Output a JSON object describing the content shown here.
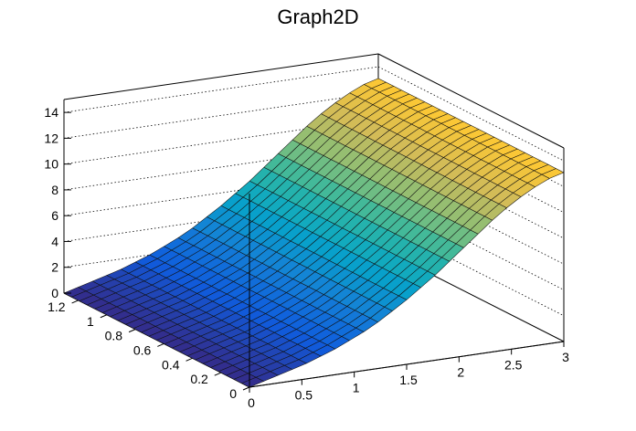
{
  "chart_data": {
    "type": "surface",
    "title": "Graph2D",
    "xlabel": "",
    "ylabel": "",
    "zlabel": "",
    "xlim": [
      0,
      3
    ],
    "ylim": [
      0,
      1.3
    ],
    "zlim": [
      0,
      15
    ],
    "x_ticks": [
      "0",
      "0.5",
      "1",
      "1.5",
      "2",
      "2.5",
      "3"
    ],
    "y_ticks": [
      "0",
      "0.2",
      "0.4",
      "0.6",
      "0.8",
      "1",
      "1.2"
    ],
    "z_ticks": [
      "0",
      "2",
      "4",
      "6",
      "8",
      "10",
      "12",
      "14"
    ],
    "x_tick_values": [
      0,
      0.5,
      1,
      1.5,
      2,
      2.5,
      3
    ],
    "y_tick_values": [
      0,
      0.2,
      0.4,
      0.6,
      0.8,
      1.0,
      1.2
    ],
    "z_tick_values": [
      0,
      2,
      4,
      6,
      8,
      10,
      12,
      14
    ],
    "grid": true,
    "palette": [
      "#352a87",
      "#0f5cdd",
      "#1481d6",
      "#06a4ca",
      "#2eb7a4",
      "#87bf77",
      "#d1bb59",
      "#fec832",
      "#f9fb0e"
    ],
    "z_grid": [
      [
        0,
        0,
        0,
        0,
        0,
        0,
        0,
        0,
        0,
        0,
        0,
        0,
        0,
        0,
        0,
        0,
        0,
        0,
        0,
        0,
        0,
        0,
        0,
        0,
        0
      ],
      [
        0.3,
        0.3,
        0.3,
        0.3,
        0.3,
        0.3,
        0.3,
        0.3,
        0.3,
        0.3,
        0.3,
        0.3,
        0.3,
        0.3,
        0.3,
        0.3,
        0.3,
        0.3,
        0.3,
        0.3,
        0.3,
        0.3,
        0.3,
        0.3,
        0.3
      ],
      [
        0.6,
        0.6,
        0.6,
        0.6,
        0.6,
        0.6,
        0.6,
        0.6,
        0.6,
        0.6,
        0.6,
        0.6,
        0.6,
        0.6,
        0.6,
        0.6,
        0.6,
        0.6,
        0.6,
        0.6,
        0.6,
        0.6,
        0.6,
        0.6,
        0.6
      ],
      [
        0.9,
        0.9,
        0.9,
        0.9,
        0.9,
        0.9,
        0.9,
        0.9,
        0.9,
        0.9,
        0.9,
        0.9,
        0.9,
        0.9,
        0.9,
        0.9,
        0.9,
        0.9,
        0.9,
        0.9,
        0.9,
        0.9,
        0.9,
        0.9,
        0.9
      ],
      [
        1.2,
        1.2,
        1.2,
        1.2,
        1.2,
        1.2,
        1.2,
        1.2,
        1.2,
        1.2,
        1.2,
        1.2,
        1.2,
        1.2,
        1.2,
        1.2,
        1.2,
        1.2,
        1.2,
        1.2,
        1.2,
        1.2,
        1.2,
        1.2,
        1.2
      ],
      [
        1.6,
        1.6,
        1.6,
        1.6,
        1.6,
        1.6,
        1.6,
        1.6,
        1.6,
        1.6,
        1.6,
        1.6,
        1.6,
        1.6,
        1.6,
        1.6,
        1.6,
        1.6,
        1.6,
        1.6,
        1.6,
        1.6,
        1.6,
        1.6,
        1.6
      ],
      [
        2.0,
        2.0,
        2.0,
        2.0,
        2.0,
        2.0,
        2.0,
        2.0,
        2.0,
        2.0,
        2.0,
        2.0,
        2.0,
        2.0,
        2.0,
        2.0,
        2.0,
        2.0,
        2.0,
        2.0,
        2.0,
        2.0,
        2.0,
        2.0,
        2.0
      ],
      [
        2.5,
        2.5,
        2.5,
        2.5,
        2.5,
        2.5,
        2.5,
        2.5,
        2.5,
        2.5,
        2.5,
        2.5,
        2.5,
        2.5,
        2.5,
        2.5,
        2.5,
        2.5,
        2.5,
        2.5,
        2.5,
        2.5,
        2.5,
        2.5,
        2.5
      ],
      [
        3.0,
        3.0,
        3.0,
        3.0,
        3.0,
        3.0,
        3.0,
        3.0,
        3.0,
        3.0,
        3.0,
        3.0,
        3.0,
        3.0,
        3.0,
        3.0,
        3.0,
        3.0,
        3.0,
        3.0,
        3.0,
        3.0,
        3.0,
        3.0,
        3.0
      ],
      [
        3.6,
        3.6,
        3.6,
        3.6,
        3.6,
        3.6,
        3.6,
        3.6,
        3.6,
        3.6,
        3.6,
        3.6,
        3.6,
        3.6,
        3.6,
        3.6,
        3.6,
        3.6,
        3.6,
        3.6,
        3.6,
        3.6,
        3.6,
        3.6,
        3.6
      ],
      [
        4.3,
        4.3,
        4.3,
        4.3,
        4.3,
        4.3,
        4.3,
        4.3,
        4.3,
        4.3,
        4.3,
        4.3,
        4.3,
        4.3,
        4.3,
        4.3,
        4.3,
        4.3,
        4.3,
        4.3,
        4.3,
        4.3,
        4.3,
        4.3,
        4.3
      ],
      [
        5.0,
        5.0,
        5.0,
        5.0,
        5.0,
        5.0,
        5.0,
        5.0,
        5.0,
        5.0,
        5.0,
        5.0,
        5.0,
        5.0,
        5.0,
        5.0,
        5.0,
        5.0,
        5.0,
        5.0,
        5.0,
        5.0,
        5.0,
        5.0,
        5.0
      ],
      [
        5.8,
        5.8,
        5.8,
        5.8,
        5.8,
        5.8,
        5.8,
        5.8,
        5.8,
        5.8,
        5.8,
        5.8,
        5.8,
        5.8,
        5.8,
        5.8,
        5.8,
        5.8,
        5.8,
        5.8,
        5.8,
        5.8,
        5.8,
        5.8,
        5.8
      ],
      [
        6.6,
        6.6,
        6.6,
        6.6,
        6.6,
        6.6,
        6.6,
        6.6,
        6.6,
        6.6,
        6.6,
        6.6,
        6.6,
        6.6,
        6.6,
        6.6,
        6.6,
        6.6,
        6.6,
        6.6,
        6.6,
        6.6,
        6.6,
        6.6,
        6.6
      ],
      [
        7.5,
        7.5,
        7.5,
        7.5,
        7.5,
        7.5,
        7.5,
        7.5,
        7.5,
        7.5,
        7.5,
        7.5,
        7.5,
        7.5,
        7.5,
        7.5,
        7.5,
        7.5,
        7.5,
        7.5,
        7.5,
        7.5,
        7.5,
        7.5,
        7.5
      ],
      [
        8.4,
        8.4,
        8.4,
        8.4,
        8.4,
        8.4,
        8.4,
        8.4,
        8.4,
        8.4,
        8.4,
        8.4,
        8.4,
        8.4,
        8.4,
        8.4,
        8.4,
        8.4,
        8.4,
        8.4,
        8.4,
        8.4,
        8.4,
        8.4,
        8.4
      ],
      [
        9.3,
        9.3,
        9.3,
        9.3,
        9.3,
        9.3,
        9.3,
        9.3,
        9.3,
        9.3,
        9.3,
        9.3,
        9.3,
        9.3,
        9.3,
        9.3,
        9.3,
        9.3,
        9.3,
        9.3,
        9.3,
        9.3,
        9.3,
        9.3,
        9.3
      ],
      [
        10.2,
        10.2,
        10.2,
        10.2,
        10.2,
        10.2,
        10.2,
        10.2,
        10.2,
        10.2,
        10.2,
        10.2,
        10.2,
        10.2,
        10.2,
        10.2,
        10.2,
        10.2,
        10.2,
        10.2,
        10.2,
        10.2,
        10.2,
        10.2,
        10.2
      ],
      [
        11.0,
        11.0,
        11.0,
        11.0,
        11.0,
        11.0,
        11.0,
        11.0,
        11.0,
        11.0,
        11.0,
        11.0,
        11.0,
        11.0,
        11.0,
        11.0,
        11.0,
        11.0,
        11.0,
        11.0,
        11.0,
        11.0,
        11.0,
        11.0,
        11.0
      ],
      [
        11.7,
        11.7,
        11.7,
        11.7,
        11.7,
        11.7,
        11.7,
        11.7,
        11.7,
        11.7,
        11.7,
        11.7,
        11.7,
        11.7,
        11.7,
        11.7,
        11.7,
        11.7,
        11.7,
        11.7,
        11.7,
        11.7,
        11.7,
        11.7,
        11.7
      ],
      [
        12.3,
        12.3,
        12.3,
        12.3,
        12.3,
        12.3,
        12.3,
        12.3,
        12.3,
        12.3,
        12.3,
        12.3,
        12.3,
        12.3,
        12.3,
        12.3,
        12.3,
        12.3,
        12.3,
        12.3,
        12.3,
        12.3,
        12.3,
        12.3,
        12.3
      ],
      [
        12.8,
        12.8,
        12.8,
        12.8,
        12.8,
        12.8,
        12.8,
        12.8,
        12.8,
        12.8,
        12.8,
        12.8,
        12.8,
        12.8,
        12.8,
        12.8,
        12.8,
        12.8,
        12.8,
        12.8,
        12.8,
        12.8,
        12.8,
        12.8,
        12.8
      ],
      [
        13.1,
        13.1,
        13.1,
        13.1,
        13.1,
        13.1,
        13.1,
        13.1,
        13.1,
        13.1,
        13.1,
        13.1,
        13.1,
        13.1,
        13.1,
        13.1,
        13.1,
        13.1,
        13.1,
        13.1,
        13.1,
        13.1,
        13.1,
        13.1,
        13.1
      ]
    ]
  }
}
